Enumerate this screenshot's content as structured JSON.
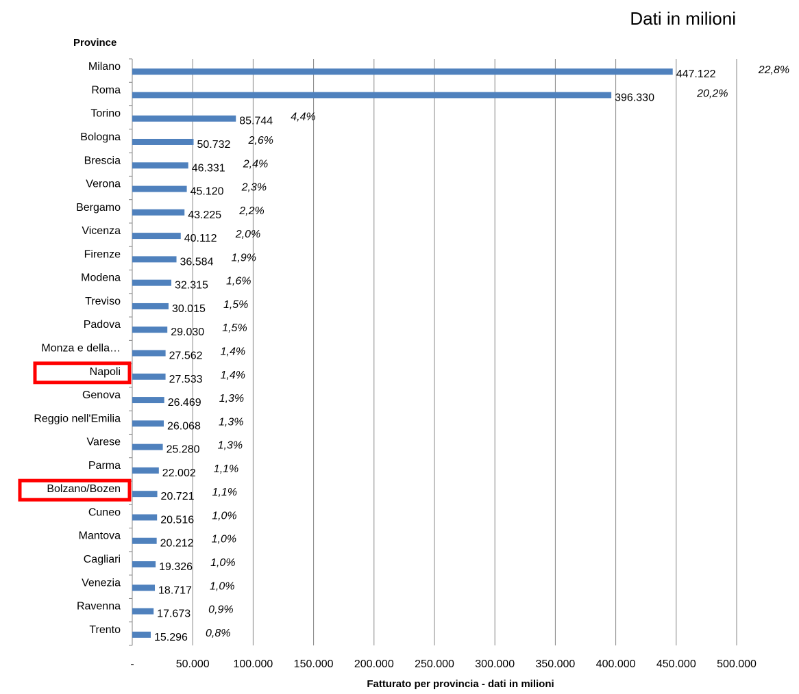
{
  "header": {
    "note": "Dati in milioni"
  },
  "chart_data": {
    "type": "bar",
    "orientation": "horizontal",
    "title": "",
    "category_axis_title": "Province",
    "xlabel": "Fatturato per provincia - dati in milioni",
    "xlim": [
      0,
      500000
    ],
    "x_ticks": [
      0,
      50000,
      100000,
      150000,
      200000,
      250000,
      300000,
      350000,
      400000,
      450000,
      500000
    ],
    "x_tick_labels": [
      "-",
      "50.000",
      "100.000",
      "150.000",
      "200.000",
      "250.000",
      "300.000",
      "350.000",
      "400.000",
      "450.000",
      "500.000"
    ],
    "grid": "vertical",
    "bar_color": "#4F81BD",
    "highlight_color": "#FF0000",
    "highlighted": [
      "Napoli",
      "Bolzano/Bozen"
    ],
    "categories": [
      "Milano",
      "Roma",
      "Torino",
      "Bologna",
      "Brescia",
      "Verona",
      "Bergamo",
      "Vicenza",
      "Firenze",
      "Modena",
      "Treviso",
      "Padova",
      "Monza e della…",
      "Napoli",
      "Genova",
      "Reggio nell'Emilia",
      "Varese",
      "Parma",
      "Bolzano/Bozen",
      "Cuneo",
      "Mantova",
      "Cagliari",
      "Venezia",
      "Ravenna",
      "Trento"
    ],
    "values": [
      447122,
      396330,
      85744,
      50732,
      46331,
      45120,
      43225,
      40112,
      36584,
      32315,
      30015,
      29030,
      27562,
      27533,
      26469,
      26068,
      25280,
      22002,
      20721,
      20516,
      20212,
      19326,
      18717,
      17673,
      15296
    ],
    "value_labels": [
      "447.122",
      "396.330",
      "85.744",
      "50.732",
      "46.331",
      "45.120",
      "43.225",
      "40.112",
      "36.584",
      "32.315",
      "30.015",
      "29.030",
      "27.562",
      "27.533",
      "26.469",
      "26.068",
      "25.280",
      "22.002",
      "20.721",
      "20.516",
      "20.212",
      "19.326",
      "18.717",
      "17.673",
      "15.296"
    ],
    "percent_labels": [
      "22,8%",
      "20,2%",
      "4,4%",
      "2,6%",
      "2,4%",
      "2,3%",
      "2,2%",
      "2,0%",
      "1,9%",
      "1,6%",
      "1,5%",
      "1,5%",
      "1,4%",
      "1,4%",
      "1,3%",
      "1,3%",
      "1,3%",
      "1,1%",
      "1,1%",
      "1,0%",
      "1,0%",
      "1,0%",
      "1,0%",
      "0,9%",
      "0,8%"
    ]
  }
}
